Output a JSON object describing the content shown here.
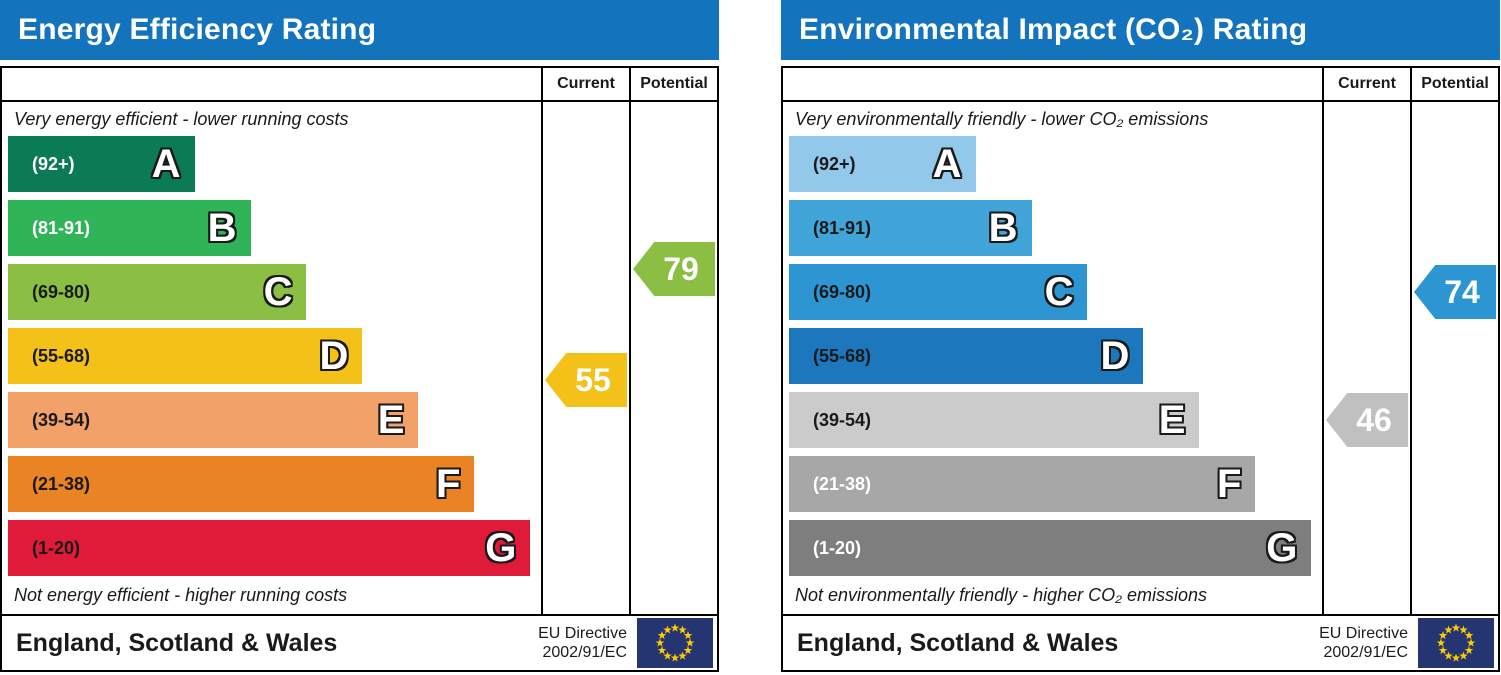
{
  "theme": {
    "header_blue": "#1374bd",
    "border_color": "#000000",
    "page_background": "#ffffff"
  },
  "eu_flag": {
    "background": "#253571",
    "star_color": "#ffcc00"
  },
  "panels": [
    {
      "title": "Energy Efficiency Rating",
      "col_current": "Current",
      "col_potential": "Potential",
      "top_caption": "Very energy efficient - lower running costs",
      "bottom_caption": "Not energy efficient - higher running costs",
      "bands": [
        {
          "letter": "A",
          "range_label": "(92+)",
          "lo": 92,
          "hi": 100,
          "color": "#0a7b55",
          "label_color": "#ffffff",
          "width_pct": 35
        },
        {
          "letter": "B",
          "range_label": "(81-91)",
          "lo": 81,
          "hi": 91,
          "color": "#2fb457",
          "label_color": "#ffffff",
          "width_pct": 45.5
        },
        {
          "letter": "C",
          "range_label": "(69-80)",
          "lo": 69,
          "hi": 80,
          "color": "#8abf43",
          "label_color": "#1a1a1a",
          "width_pct": 56
        },
        {
          "letter": "D",
          "range_label": "(55-68)",
          "lo": 55,
          "hi": 68,
          "color": "#f3c117",
          "label_color": "#1a1a1a",
          "width_pct": 66.5
        },
        {
          "letter": "E",
          "range_label": "(39-54)",
          "lo": 39,
          "hi": 54,
          "color": "#f2a168",
          "label_color": "#1a1a1a",
          "width_pct": 77
        },
        {
          "letter": "F",
          "range_label": "(21-38)",
          "lo": 21,
          "hi": 38,
          "color": "#e98324",
          "label_color": "#1a1a1a",
          "width_pct": 87.5
        },
        {
          "letter": "G",
          "range_label": "(1-20)",
          "lo": 1,
          "hi": 20,
          "color": "#e01a39",
          "label_color": "#1a1a1a",
          "width_pct": 98
        }
      ],
      "current": {
        "value": 55,
        "band": "D",
        "color": "#f3c117"
      },
      "potential": {
        "value": 79,
        "band": "C",
        "color": "#8abf43"
      },
      "footer": {
        "region": "England, Scotland & Wales",
        "directive_line1": "EU Directive",
        "directive_line2": "2002/91/EC"
      }
    },
    {
      "title": "Environmental Impact (CO₂) Rating",
      "col_current": "Current",
      "col_potential": "Potential",
      "top_caption": "Very environmentally friendly - lower CO₂ emissions",
      "bottom_caption": "Not environmentally friendly - higher CO₂ emissions",
      "bands": [
        {
          "letter": "A",
          "range_label": "(92+)",
          "lo": 92,
          "hi": 100,
          "color": "#92c9ea",
          "label_color": "#1a1a1a",
          "width_pct": 35
        },
        {
          "letter": "B",
          "range_label": "(81-91)",
          "lo": 81,
          "hi": 91,
          "color": "#42a5da",
          "label_color": "#1a1a1a",
          "width_pct": 45.5
        },
        {
          "letter": "C",
          "range_label": "(69-80)",
          "lo": 69,
          "hi": 80,
          "color": "#2d96d2",
          "label_color": "#1a1a1a",
          "width_pct": 56
        },
        {
          "letter": "D",
          "range_label": "(55-68)",
          "lo": 55,
          "hi": 68,
          "color": "#1c77bc",
          "label_color": "#1a1a1a",
          "width_pct": 66.5
        },
        {
          "letter": "E",
          "range_label": "(39-54)",
          "lo": 39,
          "hi": 54,
          "color": "#cbcbcb",
          "label_color": "#1a1a1a",
          "width_pct": 77
        },
        {
          "letter": "F",
          "range_label": "(21-38)",
          "lo": 21,
          "hi": 38,
          "color": "#a7a7a7",
          "label_color": "#ffffff",
          "width_pct": 87.5
        },
        {
          "letter": "G",
          "range_label": "(1-20)",
          "lo": 1,
          "hi": 20,
          "color": "#7e7e7e",
          "label_color": "#ffffff",
          "width_pct": 98
        }
      ],
      "current": {
        "value": 46,
        "band": "E",
        "color": "#c0c0c0"
      },
      "potential": {
        "value": 74,
        "band": "C",
        "color": "#2d96d2"
      },
      "footer": {
        "region": "England, Scotland & Wales",
        "directive_line1": "EU Directive",
        "directive_line2": "2002/91/EC"
      }
    }
  ],
  "chart_data": [
    {
      "type": "bar",
      "title": "Energy Efficiency Rating",
      "categories": [
        "A (92+)",
        "B (81-91)",
        "C (69-80)",
        "D (55-68)",
        "E (39-54)",
        "F (21-38)",
        "G (1-20)"
      ],
      "band_bar_widths_pct": [
        35,
        45.5,
        56,
        66.5,
        77,
        87.5,
        98
      ],
      "series": [
        {
          "name": "Current",
          "value": 55,
          "band": "D"
        },
        {
          "name": "Potential",
          "value": 79,
          "band": "C"
        }
      ],
      "top_note": "Very energy efficient - lower running costs",
      "bottom_note": "Not energy efficient - higher running costs",
      "footer": "England, Scotland & Wales",
      "directive": "EU Directive 2002/91/EC",
      "value_range": [
        1,
        100
      ]
    },
    {
      "type": "bar",
      "title": "Environmental Impact (CO₂) Rating",
      "categories": [
        "A (92+)",
        "B (81-91)",
        "C (69-80)",
        "D (55-68)",
        "E (39-54)",
        "F (21-38)",
        "G (1-20)"
      ],
      "band_bar_widths_pct": [
        35,
        45.5,
        56,
        66.5,
        77,
        87.5,
        98
      ],
      "series": [
        {
          "name": "Current",
          "value": 46,
          "band": "E"
        },
        {
          "name": "Potential",
          "value": 74,
          "band": "C"
        }
      ],
      "top_note": "Very environmentally friendly - lower CO₂ emissions",
      "bottom_note": "Not environmentally friendly - higher CO₂ emissions",
      "footer": "England, Scotland & Wales",
      "directive": "EU Directive 2002/91/EC",
      "value_range": [
        1,
        100
      ]
    }
  ]
}
